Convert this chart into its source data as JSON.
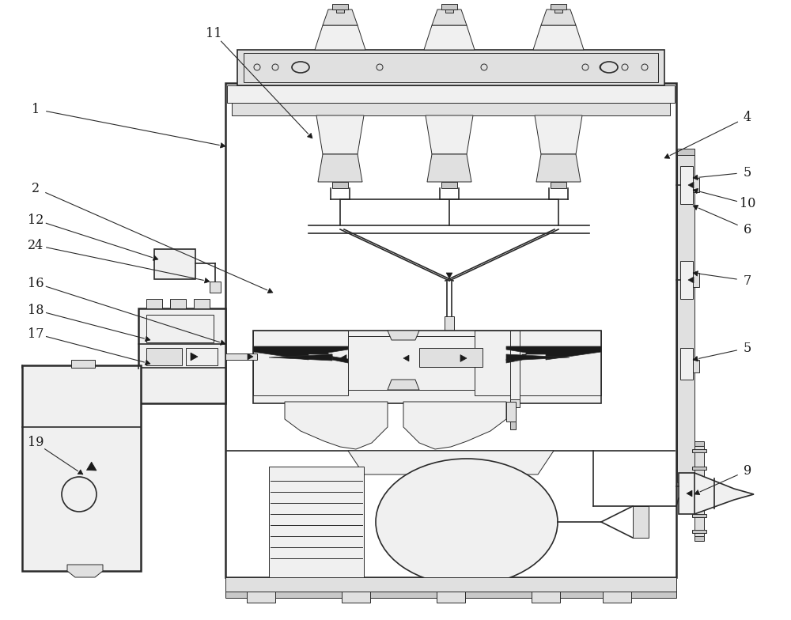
{
  "background_color": "#ffffff",
  "line_color": "#2a2a2a",
  "fig_width": 10.0,
  "fig_height": 7.84,
  "dpi": 100,
  "lw_main": 1.2,
  "lw_thin": 0.7,
  "lw_thick": 1.8,
  "label_fontsize": 11.5,
  "label_color": "#1a1a1a",
  "fill_light": "#f0f0f0",
  "fill_mid": "#e0e0e0",
  "fill_dark": "#c8c8c8",
  "fill_black": "#1a1a1a"
}
